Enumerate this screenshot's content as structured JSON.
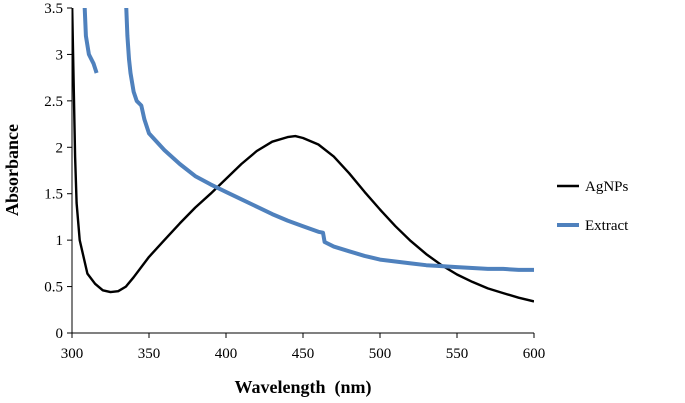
{
  "chart_data": {
    "type": "line",
    "title": "",
    "xlabel": "Wavelength  (nm)",
    "ylabel": "Absorbance",
    "xlim": [
      300,
      600
    ],
    "ylim": [
      0,
      3.5
    ],
    "xticks": [
      "300",
      "350",
      "400",
      "450",
      "500",
      "550",
      "600"
    ],
    "yticks": [
      "0",
      "0.5",
      "1",
      "1.5",
      "2",
      "2.5",
      "3",
      "3.5"
    ],
    "grid": false,
    "legend_position": "right",
    "series": [
      {
        "name": "AgNPs",
        "color": "#000000",
        "segments": [
          [
            [
              300,
              3.6
            ],
            [
              302,
              1.9
            ],
            [
              303,
              1.4
            ],
            [
              305,
              1.0
            ],
            [
              310,
              0.64
            ],
            [
              315,
              0.53
            ],
            [
              320,
              0.46
            ],
            [
              325,
              0.44
            ],
            [
              330,
              0.45
            ],
            [
              335,
              0.5
            ],
            [
              340,
              0.6
            ],
            [
              350,
              0.82
            ],
            [
              360,
              1.0
            ],
            [
              370,
              1.18
            ],
            [
              380,
              1.35
            ],
            [
              390,
              1.5
            ],
            [
              400,
              1.66
            ],
            [
              410,
              1.82
            ],
            [
              420,
              1.96
            ],
            [
              430,
              2.06
            ],
            [
              440,
              2.11
            ],
            [
              445,
              2.12
            ],
            [
              450,
              2.1
            ],
            [
              460,
              2.03
            ],
            [
              470,
              1.9
            ],
            [
              480,
              1.72
            ],
            [
              490,
              1.52
            ],
            [
              500,
              1.33
            ],
            [
              510,
              1.15
            ],
            [
              520,
              0.99
            ],
            [
              530,
              0.85
            ],
            [
              540,
              0.73
            ],
            [
              550,
              0.63
            ],
            [
              560,
              0.55
            ],
            [
              570,
              0.48
            ],
            [
              580,
              0.43
            ],
            [
              590,
              0.38
            ],
            [
              600,
              0.34
            ]
          ]
        ]
      },
      {
        "name": "Extract",
        "color": "#4f81bd",
        "segments": [
          [
            [
              308,
              3.6
            ],
            [
              309,
              3.2
            ],
            [
              311,
              3.0
            ],
            [
              314,
              2.9
            ],
            [
              316,
              2.8
            ]
          ],
          [
            [
              335,
              3.6
            ],
            [
              336,
              3.2
            ],
            [
              337,
              2.95
            ],
            [
              338,
              2.8
            ],
            [
              340,
              2.6
            ],
            [
              342,
              2.5
            ],
            [
              345,
              2.45
            ],
            [
              347,
              2.3
            ],
            [
              350,
              2.15
            ],
            [
              360,
              1.97
            ],
            [
              370,
              1.82
            ],
            [
              380,
              1.69
            ],
            [
              390,
              1.6
            ],
            [
              400,
              1.52
            ],
            [
              410,
              1.44
            ],
            [
              420,
              1.36
            ],
            [
              430,
              1.28
            ],
            [
              440,
              1.21
            ],
            [
              450,
              1.15
            ],
            [
              460,
              1.09
            ],
            [
              463,
              1.08
            ],
            [
              464,
              0.98
            ],
            [
              470,
              0.93
            ],
            [
              480,
              0.88
            ],
            [
              490,
              0.83
            ],
            [
              500,
              0.79
            ],
            [
              510,
              0.77
            ],
            [
              520,
              0.75
            ],
            [
              530,
              0.73
            ],
            [
              540,
              0.72
            ],
            [
              550,
              0.71
            ],
            [
              560,
              0.7
            ],
            [
              570,
              0.69
            ],
            [
              580,
              0.69
            ],
            [
              590,
              0.68
            ],
            [
              600,
              0.68
            ]
          ]
        ]
      }
    ]
  }
}
